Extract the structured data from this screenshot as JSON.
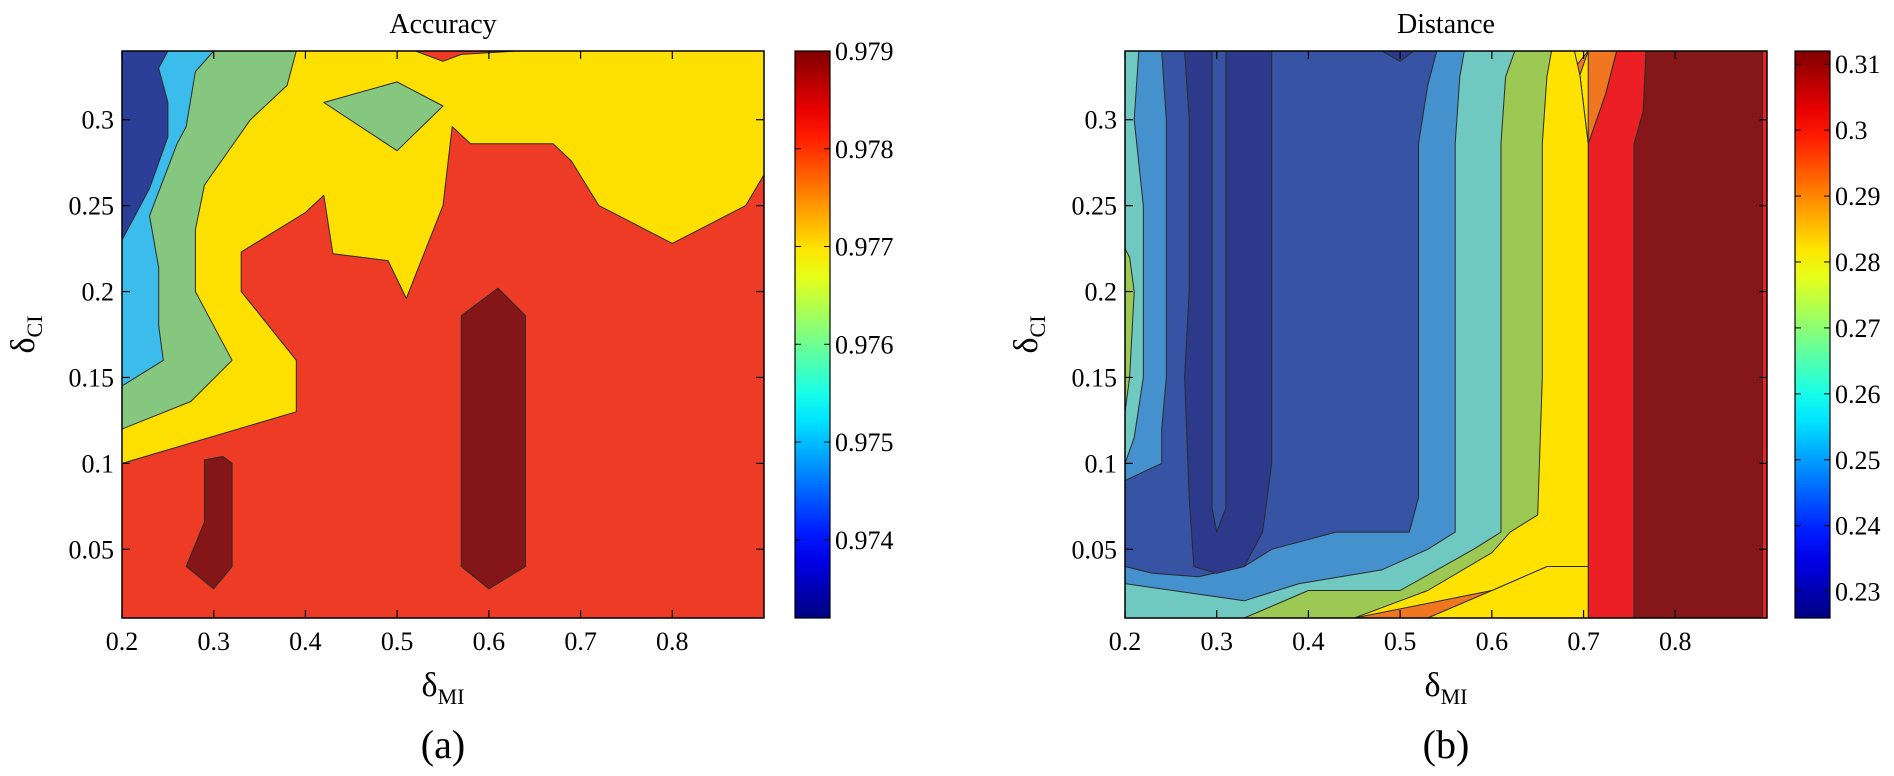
{
  "chart_data": [
    {
      "type": "contour",
      "panel_label": "(a)",
      "title": "Accuracy",
      "xlabel": {
        "symbol": "δ",
        "sub": "MI"
      },
      "ylabel": {
        "symbol": "δ",
        "sub": "CI"
      },
      "xlim": [
        0.2,
        0.9
      ],
      "ylim": [
        0.01,
        0.34
      ],
      "xticks": [
        "0.2",
        "0.3",
        "0.4",
        "0.5",
        "0.6",
        "0.7",
        "0.8"
      ],
      "yticks": [
        "0.05",
        "0.1",
        "0.15",
        "0.2",
        "0.25",
        "0.3"
      ],
      "colorbar": {
        "range": [
          0.9732,
          0.979
        ],
        "ticks": [
          "0.974",
          "0.975",
          "0.976",
          "0.977",
          "0.978",
          "0.979"
        ],
        "colormap": "jet"
      },
      "colors": {
        "dark_blue": "#2b3f98",
        "blue": "#3b57a8",
        "cyan": "#3bbcea",
        "green": "#86c77f",
        "yellow": "#fee000",
        "red": "#ee3b26",
        "dark_red": "#851618"
      },
      "regions": [
        {
          "level": 0.978,
          "color": "red",
          "points": [
            [
              0.2,
              0.01
            ],
            [
              0.9,
              0.01
            ],
            [
              0.9,
              0.34
            ],
            [
              0.2,
              0.34
            ]
          ]
        },
        {
          "level": 0.977,
          "color": "yellow",
          "points": [
            [
              0.2,
              0.1
            ],
            [
              0.39,
              0.13
            ],
            [
              0.39,
              0.16
            ],
            [
              0.33,
              0.2
            ],
            [
              0.33,
              0.223
            ],
            [
              0.4,
              0.246
            ],
            [
              0.42,
              0.256
            ],
            [
              0.43,
              0.222
            ],
            [
              0.49,
              0.218
            ],
            [
              0.51,
              0.196
            ],
            [
              0.55,
              0.25
            ],
            [
              0.56,
              0.296
            ],
            [
              0.58,
              0.286
            ],
            [
              0.67,
              0.286
            ],
            [
              0.69,
              0.276
            ],
            [
              0.72,
              0.25
            ],
            [
              0.8,
              0.228
            ],
            [
              0.88,
              0.25
            ],
            [
              0.9,
              0.268
            ],
            [
              0.9,
              0.34
            ],
            [
              0.2,
              0.34
            ]
          ]
        },
        {
          "level": 0.976,
          "color": "green",
          "points": [
            [
              0.2,
              0.12
            ],
            [
              0.275,
              0.136
            ],
            [
              0.32,
              0.16
            ],
            [
              0.29,
              0.19
            ],
            [
              0.28,
              0.2
            ],
            [
              0.28,
              0.236
            ],
            [
              0.29,
              0.262
            ],
            [
              0.34,
              0.3
            ],
            [
              0.38,
              0.32
            ],
            [
              0.39,
              0.34
            ],
            [
              0.2,
              0.34
            ]
          ]
        },
        {
          "level": 0.975,
          "color": "cyan",
          "points": [
            [
              0.2,
              0.145
            ],
            [
              0.245,
              0.16
            ],
            [
              0.24,
              0.18
            ],
            [
              0.24,
              0.214
            ],
            [
              0.23,
              0.244
            ],
            [
              0.26,
              0.286
            ],
            [
              0.27,
              0.296
            ],
            [
              0.28,
              0.328
            ],
            [
              0.3,
              0.34
            ],
            [
              0.2,
              0.34
            ]
          ]
        },
        {
          "level": 0.974,
          "color": "dark_blue",
          "points": [
            [
              0.2,
              0.23
            ],
            [
              0.23,
              0.26
            ],
            [
              0.25,
              0.29
            ],
            [
              0.25,
              0.31
            ],
            [
              0.24,
              0.33
            ],
            [
              0.25,
              0.34
            ],
            [
              0.2,
              0.34
            ]
          ]
        },
        {
          "level": 0.9765,
          "color": "green",
          "points": [
            [
              0.42,
              0.31
            ],
            [
              0.5,
              0.322
            ],
            [
              0.55,
              0.308
            ],
            [
              0.5,
              0.282
            ]
          ]
        },
        {
          "level": 0.9785,
          "color": "red",
          "points": [
            [
              0.55,
              0.334
            ],
            [
              0.57,
              0.338
            ],
            [
              0.63,
              0.34
            ],
            [
              0.52,
              0.34
            ]
          ]
        },
        {
          "level": 0.979,
          "color": "dark_red",
          "points": [
            [
              0.27,
              0.04
            ],
            [
              0.3,
              0.027
            ],
            [
              0.32,
              0.04
            ],
            [
              0.32,
              0.1
            ],
            [
              0.31,
              0.104
            ],
            [
              0.29,
              0.102
            ],
            [
              0.29,
              0.066
            ]
          ]
        },
        {
          "level": 0.979,
          "color": "dark_red",
          "points": [
            [
              0.57,
              0.04
            ],
            [
              0.6,
              0.027
            ],
            [
              0.64,
              0.04
            ],
            [
              0.64,
              0.186
            ],
            [
              0.61,
              0.202
            ],
            [
              0.57,
              0.186
            ]
          ]
        }
      ]
    },
    {
      "type": "contour",
      "panel_label": "(b)",
      "title": "Distance",
      "xlabel": {
        "symbol": "δ",
        "sub": "MI"
      },
      "ylabel": {
        "symbol": "δ",
        "sub": "CI"
      },
      "xlim": [
        0.2,
        0.9
      ],
      "ylim": [
        0.01,
        0.34
      ],
      "xticks": [
        "0.2",
        "0.3",
        "0.4",
        "0.5",
        "0.6",
        "0.7",
        "0.8"
      ],
      "yticks": [
        "0.05",
        "0.1",
        "0.15",
        "0.2",
        "0.25",
        "0.3"
      ],
      "colorbar": {
        "range": [
          0.226,
          0.312
        ],
        "ticks": [
          "0.23",
          "0.24",
          "0.25",
          "0.26",
          "0.27",
          "0.28",
          "0.29",
          "0.3",
          "0.31"
        ],
        "colormap": "jet"
      },
      "colors": {
        "dark_blue": "#2d3a8c",
        "blue": "#3653a4",
        "light_blue": "#4591cd",
        "teal": "#6fc9c0",
        "green": "#9cc954",
        "yellow": "#ffe200",
        "orange": "#f07720",
        "red": "#ec1f25",
        "dark_red": "#861719"
      },
      "regions": [
        {
          "level": 0.31,
          "color": "red",
          "points": [
            [
              0.2,
              0.01
            ],
            [
              0.9,
              0.01
            ],
            [
              0.9,
              0.34
            ],
            [
              0.2,
              0.34
            ]
          ]
        },
        {
          "level": 0.3,
          "color": "dark_red",
          "points": [
            [
              0.755,
              0.01
            ],
            [
              0.895,
              0.01
            ],
            [
              0.895,
              0.34
            ],
            [
              0.768,
              0.34
            ],
            [
              0.765,
              0.305
            ],
            [
              0.755,
              0.286
            ]
          ]
        },
        {
          "level": 0.29,
          "color": "red",
          "points": [
            [
              0.705,
              0.01
            ],
            [
              0.755,
              0.01
            ],
            [
              0.755,
              0.286
            ],
            [
              0.765,
              0.305
            ],
            [
              0.768,
              0.34
            ],
            [
              0.736,
              0.34
            ],
            [
              0.724,
              0.315
            ],
            [
              0.705,
              0.286
            ]
          ]
        },
        {
          "level": 0.28,
          "color": "orange",
          "points": [
            [
              0.2,
              0.01
            ],
            [
              0.705,
              0.01
            ],
            [
              0.705,
              0.286
            ],
            [
              0.724,
              0.315
            ],
            [
              0.736,
              0.34
            ],
            [
              0.2,
              0.34
            ]
          ]
        },
        {
          "level": 0.27,
          "color": "yellow",
          "points": [
            [
              0.2,
              0.01
            ],
            [
              0.705,
              0.01
            ],
            [
              0.705,
              0.04
            ],
            [
              0.66,
              0.04
            ],
            [
              0.6,
              0.026
            ],
            [
              0.53,
              0.01
            ],
            [
              0.47,
              0.01
            ],
            [
              0.2,
              0.01
            ],
            [
              0.2,
              0.34
            ],
            [
              0.705,
              0.34
            ],
            [
              0.705,
              0.34
            ],
            [
              0.696,
              0.326
            ],
            [
              0.705,
              0.286
            ],
            [
              0.705,
              0.34
            ]
          ]
        },
        {
          "level": 0.27,
          "color": "yellow",
          "points": [
            [
              0.45,
              0.01
            ],
            [
              0.6,
              0.026
            ],
            [
              0.66,
              0.04
            ],
            [
              0.705,
              0.04
            ],
            [
              0.705,
              0.286
            ],
            [
              0.696,
              0.326
            ],
            [
              0.69,
              0.34
            ],
            [
              0.2,
              0.34
            ],
            [
              0.2,
              0.01
            ]
          ]
        },
        {
          "level": 0.26,
          "color": "green",
          "points": [
            [
              0.2,
              0.01
            ],
            [
              0.45,
              0.01
            ],
            [
              0.53,
              0.026
            ],
            [
              0.6,
              0.048
            ],
            [
              0.62,
              0.06
            ],
            [
              0.65,
              0.07
            ],
            [
              0.655,
              0.15
            ],
            [
              0.655,
              0.286
            ],
            [
              0.66,
              0.325
            ],
            [
              0.665,
              0.34
            ],
            [
              0.2,
              0.34
            ]
          ]
        },
        {
          "level": 0.25,
          "color": "teal",
          "points": [
            [
              0.2,
              0.01
            ],
            [
              0.33,
              0.01
            ],
            [
              0.4,
              0.026
            ],
            [
              0.5,
              0.026
            ],
            [
              0.54,
              0.038
            ],
            [
              0.58,
              0.05
            ],
            [
              0.61,
              0.06
            ],
            [
              0.61,
              0.286
            ],
            [
              0.615,
              0.325
            ],
            [
              0.625,
              0.34
            ],
            [
              0.2,
              0.34
            ]
          ]
        },
        {
          "level": 0.25,
          "color": "green",
          "points": [
            [
              0.2,
              0.13
            ],
            [
              0.205,
              0.15
            ],
            [
              0.21,
              0.2
            ],
            [
              0.205,
              0.22
            ],
            [
              0.2,
              0.225
            ]
          ]
        },
        {
          "level": 0.24,
          "color": "light_blue",
          "points": [
            [
              0.2,
              0.1
            ],
            [
              0.21,
              0.115
            ],
            [
              0.22,
              0.15
            ],
            [
              0.22,
              0.25
            ],
            [
              0.21,
              0.3
            ],
            [
              0.215,
              0.34
            ],
            [
              0.57,
              0.34
            ],
            [
              0.565,
              0.325
            ],
            [
              0.56,
              0.286
            ],
            [
              0.56,
              0.06
            ],
            [
              0.53,
              0.05
            ],
            [
              0.48,
              0.038
            ],
            [
              0.39,
              0.03
            ],
            [
              0.33,
              0.02
            ],
            [
              0.2,
              0.03
            ]
          ]
        },
        {
          "level": 0.235,
          "color": "blue",
          "points": [
            [
              0.2,
              0.04
            ],
            [
              0.23,
              0.036
            ],
            [
              0.28,
              0.034
            ],
            [
              0.33,
              0.04
            ],
            [
              0.36,
              0.05
            ],
            [
              0.43,
              0.06
            ],
            [
              0.51,
              0.06
            ],
            [
              0.52,
              0.08
            ],
            [
              0.52,
              0.286
            ],
            [
              0.53,
              0.32
            ],
            [
              0.54,
              0.34
            ],
            [
              0.24,
              0.34
            ],
            [
              0.245,
              0.3
            ],
            [
              0.245,
              0.2
            ],
            [
              0.245,
              0.15
            ],
            [
              0.24,
              0.12
            ],
            [
              0.24,
              0.1
            ],
            [
              0.2,
              0.09
            ]
          ]
        },
        {
          "level": 0.23,
          "color": "dark_blue",
          "points": [
            [
              0.275,
              0.04
            ],
            [
              0.3,
              0.036
            ],
            [
              0.33,
              0.04
            ],
            [
              0.35,
              0.06
            ],
            [
              0.36,
              0.1
            ],
            [
              0.36,
              0.34
            ],
            [
              0.265,
              0.34
            ],
            [
              0.27,
              0.3
            ],
            [
              0.27,
              0.2
            ],
            [
              0.265,
              0.15
            ],
            [
              0.27,
              0.08
            ]
          ]
        },
        {
          "level": 0.228,
          "color": "blue",
          "points": [
            [
              0.3,
              0.06
            ],
            [
              0.31,
              0.074
            ],
            [
              0.31,
              0.34
            ],
            [
              0.295,
              0.34
            ],
            [
              0.295,
              0.074
            ]
          ]
        },
        {
          "level": 0.23,
          "color": "dark_blue",
          "points": [
            [
              0.48,
              0.34
            ],
            [
              0.5,
              0.334
            ],
            [
              0.515,
              0.34
            ]
          ]
        }
      ]
    }
  ]
}
